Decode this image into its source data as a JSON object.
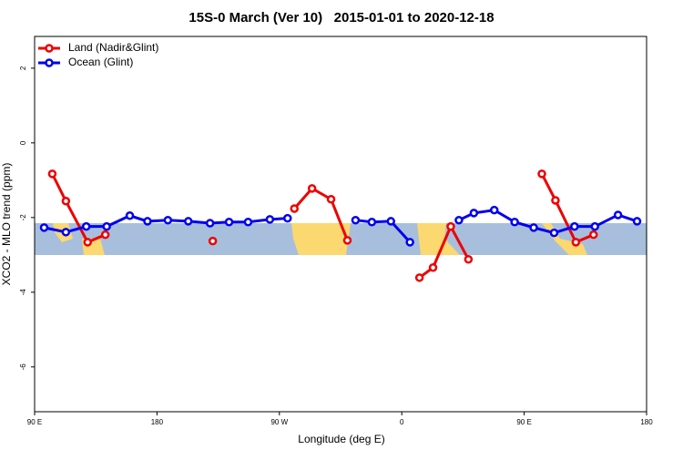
{
  "chart_data": {
    "type": "line",
    "title": "15S-0 March (Ver 10)   2015-01-01 to 2020-12-18",
    "x_label": "Longitude (deg E)",
    "y_label": "XCO2 - MLO trend (ppm)",
    "xlim": [
      90,
      540
    ],
    "xticks": [
      {
        "value": 90,
        "label": "90 E"
      },
      180,
      {
        "value": 270,
        "label": "90 W"
      },
      {
        "value": 360,
        "label": "0"
      },
      {
        "value": 450,
        "label": "90 E"
      },
      {
        "value": 540,
        "label": "180"
      }
    ],
    "ylim": [
      -7.2,
      2.85
    ],
    "yticks": [
      2,
      0,
      -2,
      -4,
      -6
    ],
    "legend": "top-left",
    "series": [
      {
        "name": "Land (Nadir&Glint)",
        "color": "#ee0000",
        "x": [
          103,
          113,
          129,
          142,
          null,
          221,
          null,
          281,
          294,
          308,
          320,
          null,
          373,
          383,
          396,
          409,
          null,
          463,
          473,
          488,
          501
        ],
        "values": [
          -0.83,
          -1.56,
          -2.66,
          -2.46,
          null,
          -2.63,
          null,
          -1.76,
          -1.22,
          -1.51,
          -2.61,
          null,
          -3.61,
          -3.34,
          -2.24,
          -3.12,
          null,
          -0.83,
          -1.54,
          -2.66,
          -2.46
        ]
      },
      {
        "name": "Ocean (Glint)",
        "color": "#0000ee",
        "x": [
          97,
          113,
          128,
          143,
          160,
          173,
          188,
          203,
          219,
          233,
          247,
          263,
          276,
          null,
          326,
          338,
          352,
          366,
          null,
          402,
          413,
          428,
          443,
          457,
          472,
          487,
          502,
          519,
          533
        ],
        "values": [
          -2.27,
          -2.39,
          -2.24,
          -2.24,
          -1.95,
          -2.1,
          -2.07,
          -2.1,
          -2.15,
          -2.12,
          -2.12,
          -2.05,
          -2.02,
          null,
          -2.07,
          -2.12,
          -2.1,
          -2.66,
          null,
          -2.07,
          -1.88,
          -1.8,
          -2.12,
          -2.27,
          -2.41,
          -2.24,
          -2.24,
          -1.93,
          -2.1
        ]
      }
    ]
  }
}
